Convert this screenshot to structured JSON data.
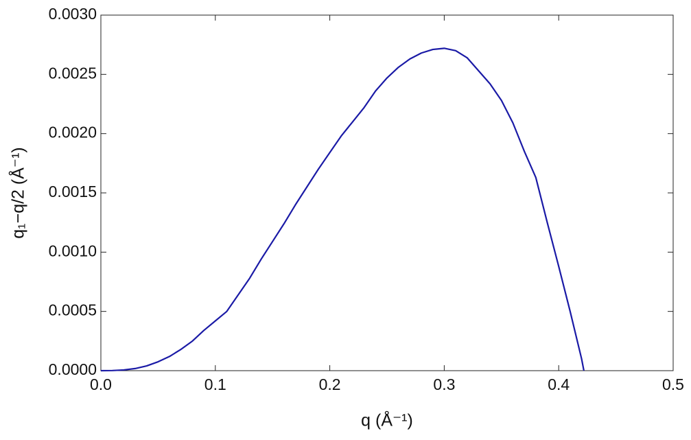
{
  "chart_data": {
    "type": "line",
    "xlabel": "q (Å⁻¹)",
    "ylabel": "q₁−q/2 (Å⁻¹)",
    "x": [
      0,
      0.01,
      0.02,
      0.03,
      0.04,
      0.05,
      0.06,
      0.07,
      0.08,
      0.09,
      0.1,
      0.11,
      0.12,
      0.13,
      0.14,
      0.15,
      0.16,
      0.17,
      0.18,
      0.19,
      0.2,
      0.21,
      0.22,
      0.23,
      0.24,
      0.25,
      0.26,
      0.27,
      0.28,
      0.29,
      0.3,
      0.31,
      0.32,
      0.33,
      0.34,
      0.35,
      0.36,
      0.37,
      0.38,
      0.39,
      0.4,
      0.41,
      0.42,
      0.422
    ],
    "series": [
      {
        "color": "#1a1aa6",
        "values": [
          0,
          1e-06,
          6e-06,
          1.8e-05,
          4e-05,
          7.5e-05,
          0.00012,
          0.00018,
          0.00025,
          0.00034,
          0.00042,
          0.0005,
          0.00064,
          0.00078,
          0.00094,
          0.00109,
          0.00124,
          0.0014,
          0.00155,
          0.0017,
          0.00184,
          0.00198,
          0.0021,
          0.00222,
          0.00236,
          0.00247,
          0.00256,
          0.00263,
          0.00268,
          0.00271,
          0.00272,
          0.0027,
          0.00264,
          0.00253,
          0.00242,
          0.00228,
          0.00209,
          0.00185,
          0.00163,
          0.00125,
          0.00088,
          0.0005,
          0.0001,
          0
        ]
      }
    ],
    "xlim": [
      0,
      0.5
    ],
    "ylim": [
      0,
      0.003
    ],
    "xticks": [
      {
        "value": 0,
        "label": "0.0"
      },
      0.1,
      0.2,
      0.3,
      0.4,
      0.5
    ],
    "yticks": [
      {
        "value": 0,
        "label": "0.0000"
      },
      {
        "value": 0.0005,
        "label": "0.0005"
      },
      {
        "value": 0.001,
        "label": "0.0010"
      },
      {
        "value": 0.0015,
        "label": "0.0015"
      },
      {
        "value": 0.002,
        "label": "0.0020"
      },
      {
        "value": 0.0025,
        "label": "0.0025"
      },
      {
        "value": 0.003,
        "label": "0.0030"
      }
    ]
  }
}
